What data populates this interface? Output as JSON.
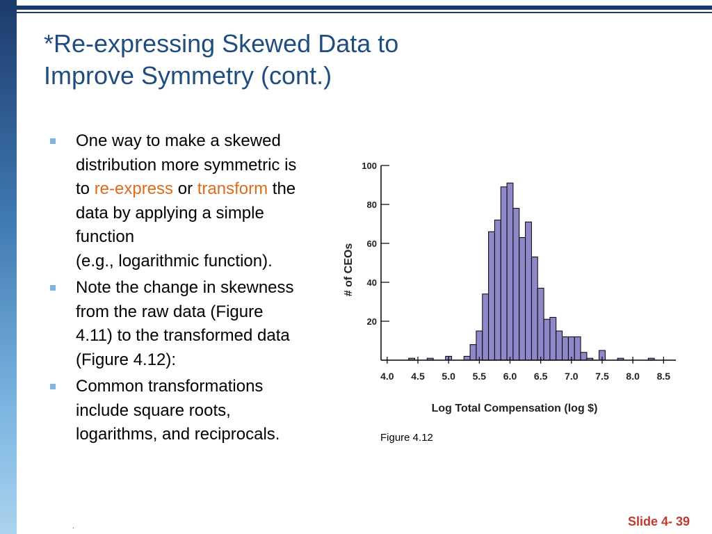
{
  "slide": {
    "title_line1": "*Re-expressing Skewed Data to",
    "title_line2": "Improve Symmetry (cont.)",
    "bullets": [
      {
        "lines": [
          "One way to make a skewed",
          "distribution more symmetric is"
        ],
        "l3_pre": "to ",
        "l3_hl1": "re-express",
        "l3_mid": " or ",
        "l3_hl2": "transform",
        "l3_post": " the",
        "lines_after": [
          "data by applying a simple",
          "function",
          "(e.g., logarithmic function)."
        ]
      },
      {
        "lines": [
          "Note the change in skewness",
          "from the raw data (Figure",
          "4.11) to the transformed data",
          "(Figure 4.12):"
        ]
      },
      {
        "lines": [
          "Common transformations",
          "include square roots,",
          "logarithms, and reciprocals."
        ]
      }
    ],
    "figure_caption": "Figure 4.12",
    "footer_dot": ".",
    "slide_number": "Slide 4- 39",
    "colors": {
      "title": "#1f4d7f",
      "highlight": "#e06a1b",
      "bar_fill": "#8e88c9",
      "slide_number": "#c0392b"
    }
  },
  "chart_data": {
    "type": "bar",
    "xlabel": "Log Total Compensation (log $)",
    "ylabel": "# of CEOs",
    "xlim": [
      3.9,
      8.7
    ],
    "ylim": [
      0,
      100
    ],
    "x_ticks": [
      "4.0",
      "4.5",
      "5.0",
      "5.5",
      "6.0",
      "6.5",
      "7.0",
      "7.5",
      "8.0",
      "8.5"
    ],
    "y_ticks": [
      "20",
      "40",
      "60",
      "80",
      "100"
    ],
    "bin_width": 0.1,
    "bins": [
      {
        "x": 4.4,
        "count": 1
      },
      {
        "x": 4.7,
        "count": 1
      },
      {
        "x": 5.0,
        "count": 2
      },
      {
        "x": 5.3,
        "count": 2
      },
      {
        "x": 5.4,
        "count": 8
      },
      {
        "x": 5.5,
        "count": 15
      },
      {
        "x": 5.6,
        "count": 34
      },
      {
        "x": 5.7,
        "count": 66
      },
      {
        "x": 5.8,
        "count": 72
      },
      {
        "x": 5.9,
        "count": 89
      },
      {
        "x": 6.0,
        "count": 91
      },
      {
        "x": 6.1,
        "count": 78
      },
      {
        "x": 6.2,
        "count": 63
      },
      {
        "x": 6.3,
        "count": 71
      },
      {
        "x": 6.4,
        "count": 53
      },
      {
        "x": 6.5,
        "count": 37
      },
      {
        "x": 6.6,
        "count": 21
      },
      {
        "x": 6.7,
        "count": 22
      },
      {
        "x": 6.8,
        "count": 15
      },
      {
        "x": 6.9,
        "count": 12
      },
      {
        "x": 7.0,
        "count": 12
      },
      {
        "x": 7.1,
        "count": 12
      },
      {
        "x": 7.2,
        "count": 4
      },
      {
        "x": 7.3,
        "count": 1
      },
      {
        "x": 7.5,
        "count": 5
      },
      {
        "x": 7.8,
        "count": 1
      },
      {
        "x": 8.3,
        "count": 1
      }
    ]
  }
}
